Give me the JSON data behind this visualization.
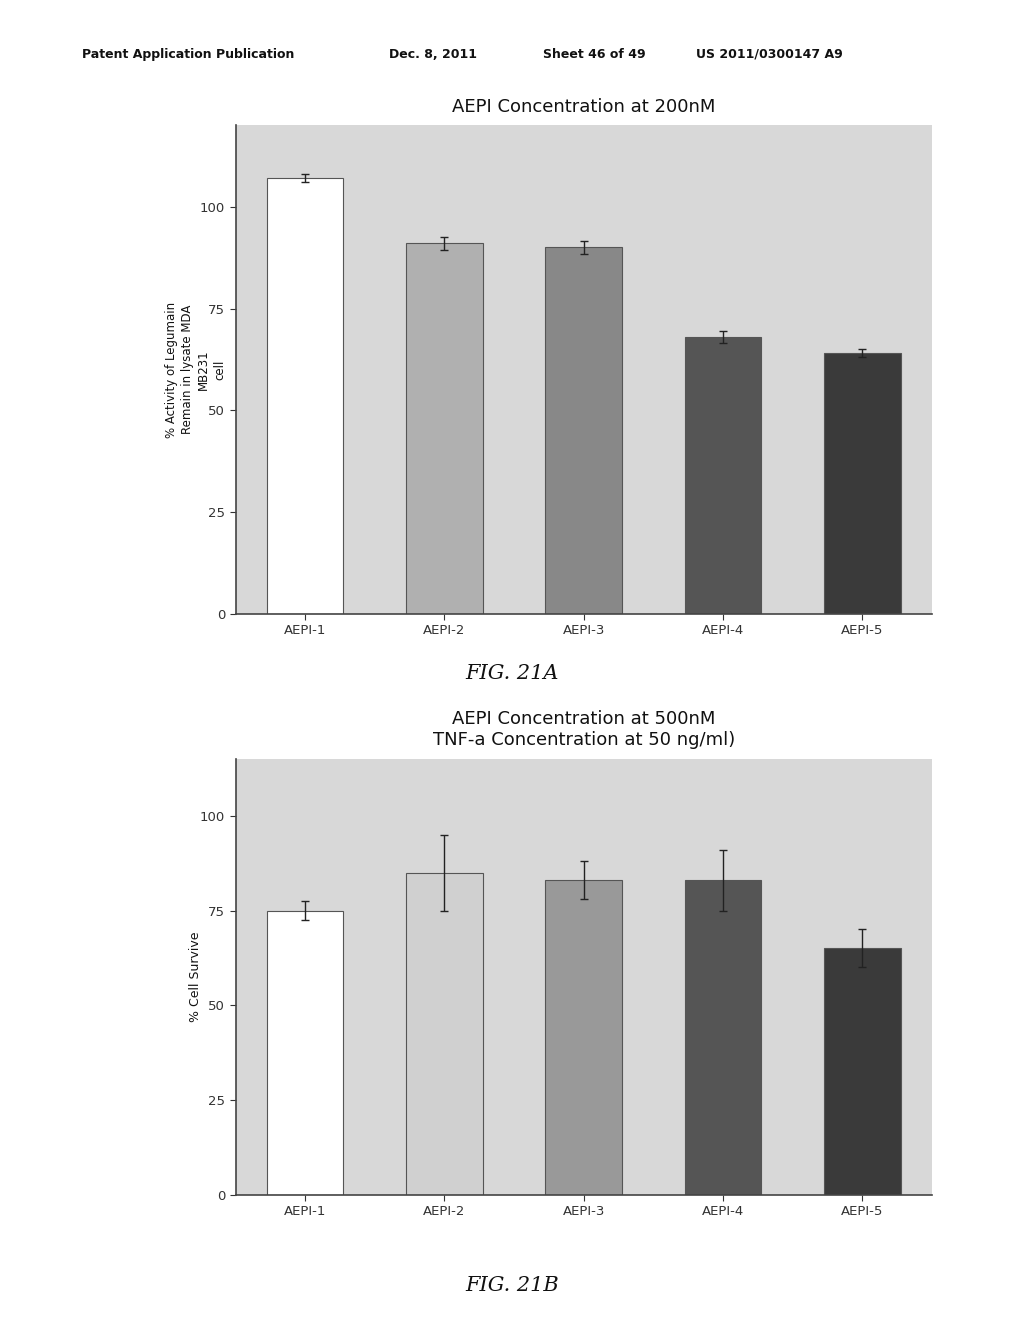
{
  "fig21a": {
    "title": "AEPI Concentration at 200nM",
    "ylabel": "% Activity of Legumain\nRemain in lysate MDA\nMB231\ncell",
    "categories": [
      "AEPI-1",
      "AEPI-2",
      "AEPI-3",
      "AEPI-4",
      "AEPI-5"
    ],
    "values": [
      107,
      91,
      90,
      68,
      64
    ],
    "errors": [
      1.0,
      1.5,
      1.5,
      1.5,
      1.0
    ],
    "bar_colors": [
      "#ffffff",
      "#b0b0b0",
      "#888888",
      "#555555",
      "#3a3a3a"
    ],
    "bar_edgecolors": [
      "#555555",
      "#555555",
      "#555555",
      "#555555",
      "#555555"
    ],
    "ylim": [
      0,
      120
    ],
    "yticks": [
      0,
      25,
      50,
      75,
      100
    ],
    "fig_label": "FIG. 21A"
  },
  "fig21b": {
    "title": "AEPI Concentration at 500nM\nTNF-a Concentration at 50 ng/ml)",
    "ylabel": "% Cell Survive",
    "categories": [
      "AEPI-1",
      "AEPI-2",
      "AEPI-3",
      "AEPI-4",
      "AEPI-5"
    ],
    "values": [
      75,
      85,
      83,
      83,
      65
    ],
    "errors": [
      2.5,
      10,
      5,
      8,
      5
    ],
    "bar_colors": [
      "#ffffff",
      "#d0d0d0",
      "#999999",
      "#555555",
      "#3a3a3a"
    ],
    "bar_edgecolors": [
      "#555555",
      "#555555",
      "#555555",
      "#555555",
      "#555555"
    ],
    "ylim": [
      0,
      115
    ],
    "yticks": [
      0,
      25,
      50,
      75,
      100
    ],
    "fig_label": "FIG. 21B"
  },
  "header_left": "Patent Application Publication",
  "header_mid1": "Dec. 8, 2011",
  "header_mid2": "Sheet 46 of 49",
  "header_right": "US 2011/0300147 A9",
  "bg_color": "#ffffff",
  "plot_bg_color": "#d8d8d8",
  "outer_bg_color": "#c8c8c8"
}
